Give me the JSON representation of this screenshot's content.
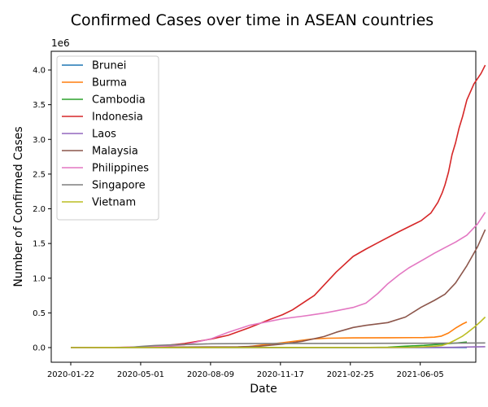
{
  "chart_data": {
    "type": "line",
    "title": "Confirmed Cases over time in ASEAN countries",
    "xlabel": "Date",
    "ylabel": "Number of Confirmed Cases",
    "y_offset_label": "1e6",
    "x_ticks": [
      "2020-01-22",
      "2020-05-01",
      "2020-08-09",
      "2020-11-17",
      "2021-02-25",
      "2021-06-05",
      ""
    ],
    "y_ticks": [
      "0.0",
      "0.5",
      "1.0",
      "1.5",
      "2.0",
      "2.5",
      "3.0",
      "3.5",
      "4.0"
    ],
    "x_range": [
      "2020-01-22",
      "2021-08-05"
    ],
    "ylim": [
      0,
      4.1
    ],
    "y_unit_multiplier": 1000000,
    "legend_position": "upper left",
    "grid": false,
    "series": [
      {
        "name": "Brunei",
        "color": "#1f77b4",
        "points": [
          [
            "2020-01-22",
            0.0
          ],
          [
            "2021-08-05",
            0.0003
          ]
        ]
      },
      {
        "name": "Burma",
        "color": "#ff7f0e",
        "points": [
          [
            "2020-01-22",
            0.0
          ],
          [
            "2020-08-09",
            0.0004
          ],
          [
            "2020-09-10",
            0.003
          ],
          [
            "2020-10-01",
            0.015
          ],
          [
            "2020-10-25",
            0.045
          ],
          [
            "2020-11-17",
            0.07
          ],
          [
            "2020-12-10",
            0.1
          ],
          [
            "2020-12-31",
            0.125
          ],
          [
            "2021-01-20",
            0.135
          ],
          [
            "2021-02-25",
            0.14
          ],
          [
            "2021-04-15",
            0.142
          ],
          [
            "2021-06-05",
            0.144
          ],
          [
            "2021-06-20",
            0.15
          ],
          [
            "2021-06-30",
            0.165
          ],
          [
            "2021-07-10",
            0.21
          ],
          [
            "2021-07-20",
            0.28
          ],
          [
            "2021-07-30",
            0.34
          ],
          [
            "2021-08-05",
            0.37
          ]
        ]
      },
      {
        "name": "Cambodia",
        "color": "#2ca02c",
        "points": [
          [
            "2020-01-22",
            0.0
          ],
          [
            "2021-02-25",
            0.001
          ],
          [
            "2021-03-20",
            0.002
          ],
          [
            "2021-04-15",
            0.006
          ],
          [
            "2021-05-10",
            0.02
          ],
          [
            "2021-06-05",
            0.032
          ],
          [
            "2021-07-01",
            0.05
          ],
          [
            "2021-07-20",
            0.065
          ],
          [
            "2021-08-05",
            0.08
          ]
        ]
      },
      {
        "name": "Indonesia",
        "color": "#d62728",
        "points": [
          [
            "2020-01-22",
            0.0
          ],
          [
            "2020-03-15",
            0.0001
          ],
          [
            "2020-04-10",
            0.003
          ],
          [
            "2020-05-01",
            0.01
          ],
          [
            "2020-06-01",
            0.027
          ],
          [
            "2020-07-01",
            0.058
          ],
          [
            "2020-08-09",
            0.125
          ],
          [
            "2020-09-01",
            0.177
          ],
          [
            "2020-10-01",
            0.287
          ],
          [
            "2020-11-01",
            0.413
          ],
          [
            "2020-11-17",
            0.474
          ],
          [
            "2020-12-01",
            0.543
          ],
          [
            "2021-01-01",
            0.752
          ],
          [
            "2021-02-01",
            1.089
          ],
          [
            "2021-02-25",
            1.314
          ],
          [
            "2021-03-15",
            1.419
          ],
          [
            "2021-04-01",
            1.511
          ],
          [
            "2021-05-01",
            1.672
          ],
          [
            "2021-06-01",
            1.827
          ],
          [
            "2021-06-15",
            1.938
          ],
          [
            "2021-06-25",
            2.093
          ],
          [
            "2021-07-01",
            2.228
          ],
          [
            "2021-07-05",
            2.345
          ],
          [
            "2021-07-10",
            2.527
          ],
          [
            "2021-07-15",
            2.781
          ],
          [
            "2021-07-20",
            2.95
          ],
          [
            "2021-07-25",
            3.166
          ],
          [
            "2021-07-30",
            3.331
          ],
          [
            "2021-08-05",
            3.568
          ],
          [
            "2021-08-15",
            3.8
          ],
          [
            "2021-08-25",
            3.95
          ],
          [
            "2021-08-31",
            4.07
          ]
        ]
      },
      {
        "name": "Laos",
        "color": "#9467bd",
        "points": [
          [
            "2020-01-22",
            0.0
          ],
          [
            "2021-04-15",
            0.0005
          ],
          [
            "2021-06-05",
            0.002
          ],
          [
            "2021-07-15",
            0.004
          ],
          [
            "2021-08-05",
            0.008
          ],
          [
            "2021-08-31",
            0.013
          ]
        ]
      },
      {
        "name": "Malaysia",
        "color": "#8c564b",
        "points": [
          [
            "2020-01-22",
            0.0
          ],
          [
            "2020-03-15",
            0.001
          ],
          [
            "2020-05-01",
            0.006
          ],
          [
            "2020-08-09",
            0.009
          ],
          [
            "2020-09-15",
            0.01
          ],
          [
            "2020-10-15",
            0.02
          ],
          [
            "2020-11-17",
            0.05
          ],
          [
            "2020-12-15",
            0.09
          ],
          [
            "2021-01-15",
            0.16
          ],
          [
            "2021-02-01",
            0.22
          ],
          [
            "2021-02-25",
            0.29
          ],
          [
            "2021-03-15",
            0.32
          ],
          [
            "2021-04-15",
            0.36
          ],
          [
            "2021-05-10",
            0.44
          ],
          [
            "2021-06-01",
            0.58
          ],
          [
            "2021-06-20",
            0.68
          ],
          [
            "2021-07-05",
            0.77
          ],
          [
            "2021-07-20",
            0.93
          ],
          [
            "2021-08-05",
            1.18
          ],
          [
            "2021-08-20",
            1.45
          ],
          [
            "2021-08-31",
            1.7
          ]
        ]
      },
      {
        "name": "Philippines",
        "color": "#e377c2",
        "points": [
          [
            "2020-01-22",
            0.0
          ],
          [
            "2020-03-15",
            0.001
          ],
          [
            "2020-05-01",
            0.009
          ],
          [
            "2020-06-01",
            0.02
          ],
          [
            "2020-07-01",
            0.04
          ],
          [
            "2020-08-09",
            0.13
          ],
          [
            "2020-09-01",
            0.22
          ],
          [
            "2020-10-01",
            0.32
          ],
          [
            "2020-11-01",
            0.383
          ],
          [
            "2020-11-17",
            0.415
          ],
          [
            "2020-12-15",
            0.452
          ],
          [
            "2021-01-15",
            0.497
          ],
          [
            "2021-02-01",
            0.53
          ],
          [
            "2021-02-25",
            0.578
          ],
          [
            "2021-03-15",
            0.64
          ],
          [
            "2021-04-01",
            0.78
          ],
          [
            "2021-04-15",
            0.92
          ],
          [
            "2021-05-01",
            1.05
          ],
          [
            "2021-05-15",
            1.15
          ],
          [
            "2021-06-05",
            1.27
          ],
          [
            "2021-06-20",
            1.36
          ],
          [
            "2021-07-05",
            1.44
          ],
          [
            "2021-07-20",
            1.52
          ],
          [
            "2021-08-05",
            1.62
          ],
          [
            "2021-08-20",
            1.78
          ],
          [
            "2021-08-31",
            1.95
          ]
        ]
      },
      {
        "name": "Singapore",
        "color": "#7f7f7f",
        "points": [
          [
            "2020-01-22",
            0.0
          ],
          [
            "2020-03-15",
            0.0002
          ],
          [
            "2020-04-15",
            0.004
          ],
          [
            "2020-05-01",
            0.017
          ],
          [
            "2020-05-20",
            0.03
          ],
          [
            "2020-06-20",
            0.042
          ],
          [
            "2020-07-20",
            0.049
          ],
          [
            "2020-08-09",
            0.055
          ],
          [
            "2020-10-01",
            0.057
          ],
          [
            "2021-06-05",
            0.062
          ],
          [
            "2021-08-05",
            0.066
          ],
          [
            "2021-08-31",
            0.067
          ]
        ]
      },
      {
        "name": "Vietnam",
        "color": "#bcbd22",
        "points": [
          [
            "2020-01-22",
            0.0
          ],
          [
            "2021-04-15",
            0.002
          ],
          [
            "2021-05-15",
            0.004
          ],
          [
            "2021-06-05",
            0.01
          ],
          [
            "2021-06-20",
            0.02
          ],
          [
            "2021-07-01",
            0.03
          ],
          [
            "2021-07-10",
            0.06
          ],
          [
            "2021-07-20",
            0.11
          ],
          [
            "2021-07-30",
            0.165
          ],
          [
            "2021-08-05",
            0.21
          ],
          [
            "2021-08-15",
            0.29
          ],
          [
            "2021-08-25",
            0.38
          ],
          [
            "2021-08-31",
            0.44
          ]
        ]
      }
    ]
  }
}
